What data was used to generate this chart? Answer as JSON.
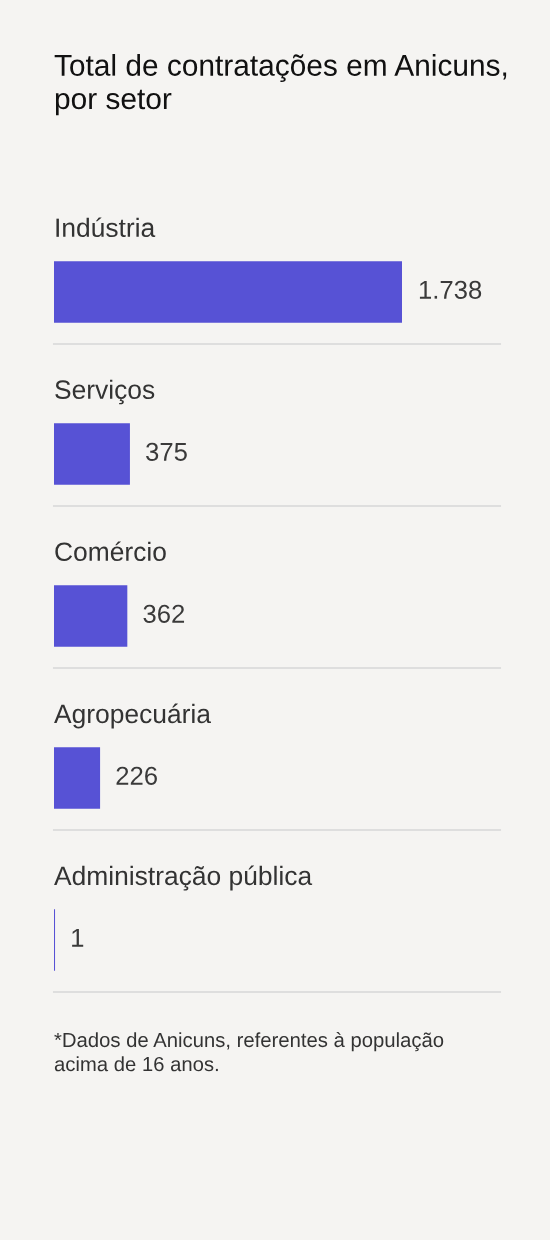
{
  "chart_data": {
    "type": "bar",
    "orientation": "horizontal",
    "title": "Total de contratações em Anicuns, por setor",
    "categories": [
      "Indústria",
      "Serviços",
      "Comércio",
      "Agropecuária",
      "Administração pública"
    ],
    "values": [
      1738,
      375,
      362,
      226,
      1
    ],
    "value_labels": [
      "1.738",
      "375",
      "362",
      "226",
      "1"
    ],
    "color": "#5752d5",
    "annotations": [
      "*Dados de Anicuns, referentes à população acima de 16 anos."
    ]
  }
}
